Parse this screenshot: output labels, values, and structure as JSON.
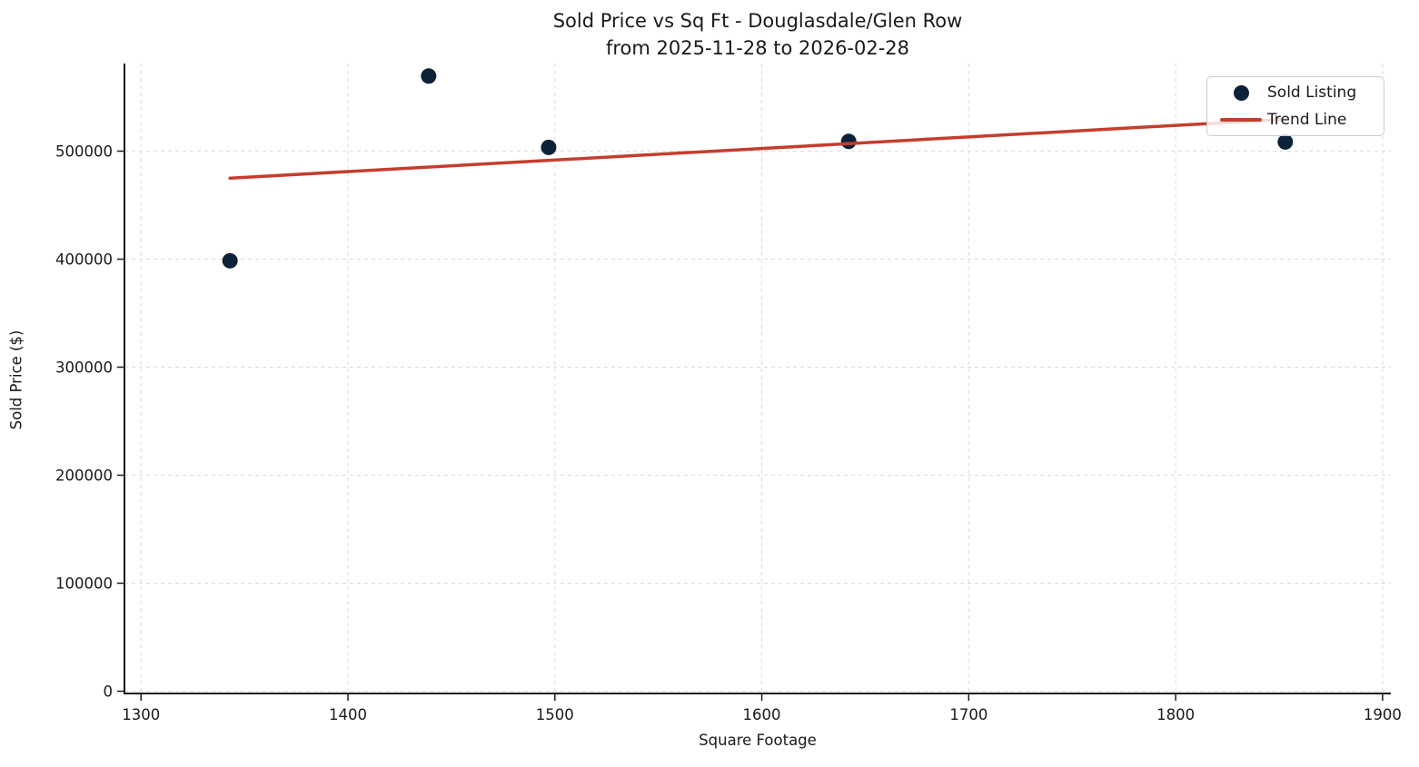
{
  "page": {
    "background_color": "#ffffff",
    "text_color": "#1a1a1a"
  },
  "chart_data": {
    "type": "scatter",
    "title": "Sold Price vs Sq Ft - Douglasdale/Glen Row",
    "subtitle": "from 2025-11-28 to 2026-02-28",
    "xlabel": "Square Footage",
    "ylabel": "Sold Price ($)",
    "xlim": [
      1292,
      1904
    ],
    "ylim": [
      -2100,
      581100
    ],
    "x_ticks": [
      1300,
      1400,
      1500,
      1600,
      1700,
      1800,
      1900
    ],
    "y_ticks": [
      0,
      100000,
      200000,
      300000,
      400000,
      500000
    ],
    "grid": true,
    "grid_style": "dashed",
    "grid_color": "#dcdcdc",
    "spine_color": "#1a1a1a",
    "legend_position": "upper right",
    "series": [
      {
        "name": "Sold Listing",
        "kind": "scatter",
        "color": "#0d2238",
        "marker": "circle",
        "points": [
          [
            1343,
            398500
          ],
          [
            1439,
            569500
          ],
          [
            1497,
            503500
          ],
          [
            1642,
            509000
          ],
          [
            1853,
            508500
          ]
        ]
      },
      {
        "name": "Trend Line",
        "kind": "line",
        "color": "#c53d2e",
        "points": [
          [
            1343,
            475000
          ],
          [
            1853,
            529500
          ]
        ]
      }
    ]
  }
}
